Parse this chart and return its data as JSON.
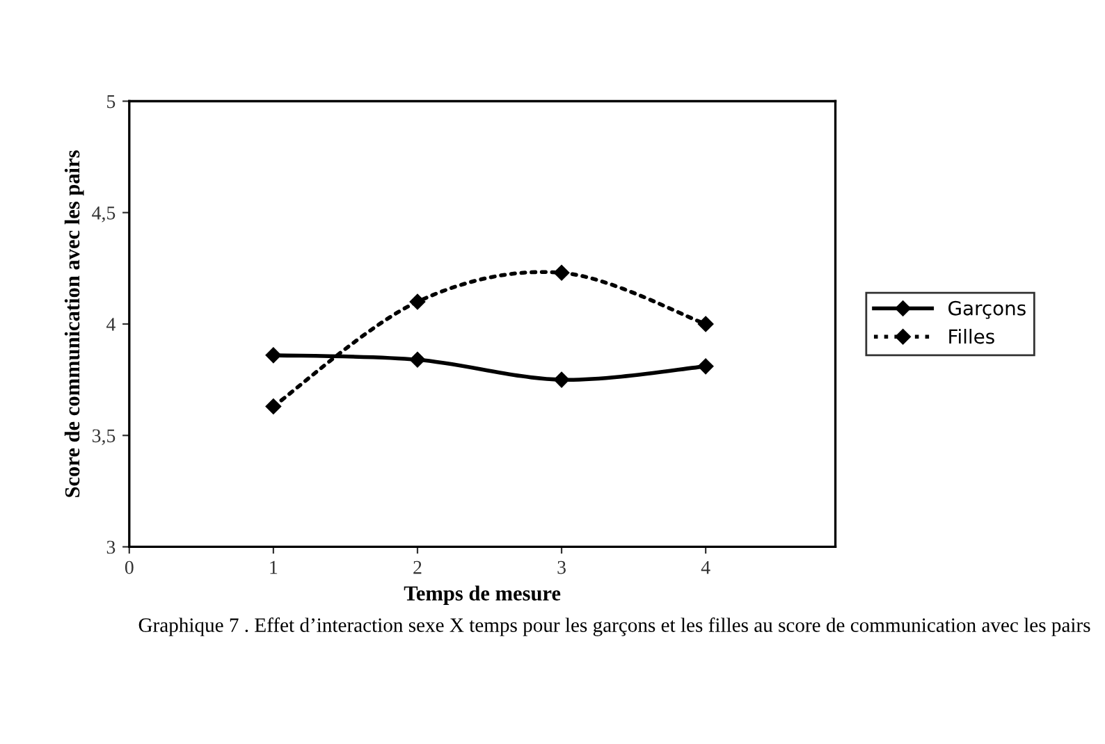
{
  "chart_data": {
    "type": "line",
    "xlabel": "Temps de mesure",
    "ylabel": "Score de communication avec les pairs",
    "x": [
      1,
      2,
      3,
      4
    ],
    "xlim": [
      0,
      4.9
    ],
    "xticks": [
      0,
      1,
      2,
      3,
      4
    ],
    "ylim": [
      3,
      5
    ],
    "yticks": [
      3,
      {
        "value": 3.5,
        "label": "3,5"
      },
      4,
      {
        "value": 4.5,
        "label": "4,5"
      },
      5
    ],
    "series": [
      {
        "name": "Garçons",
        "color": "#000000",
        "values": [
          3.86,
          3.84,
          3.75,
          3.81
        ],
        "line_style": "solid"
      },
      {
        "name": "Filles",
        "color": "#000000",
        "values": [
          3.63,
          4.1,
          4.23,
          4.0
        ],
        "line_style": "dotted"
      }
    ],
    "marker": "diamond",
    "legend": "right",
    "grid": false,
    "annotations": [
      "Graphique 7 . Effet d’interaction sexe X temps pour les garçons et les filles au score de communication avec les pairs"
    ]
  }
}
